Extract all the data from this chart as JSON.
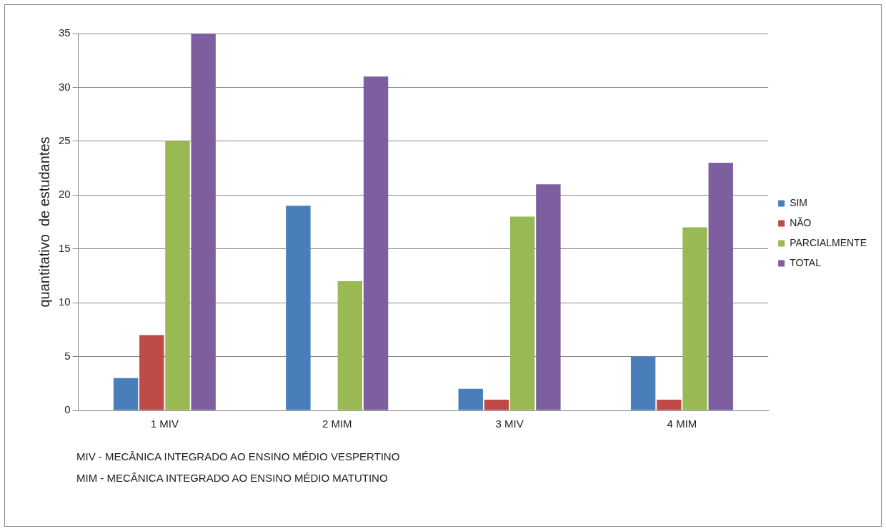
{
  "chart_data": {
    "type": "bar",
    "ylabel": "quantitativo  de estudantes",
    "categories": [
      "1 MIV",
      "2 MIM",
      "3 MIV",
      "4 MIM"
    ],
    "series": [
      {
        "name": "SIM",
        "color": "#4a7ebb",
        "values": [
          3,
          19,
          2,
          5
        ]
      },
      {
        "name": "NÃO",
        "color": "#be4b48",
        "values": [
          7,
          0,
          1,
          1
        ]
      },
      {
        "name": "PARCIALMENTE",
        "color": "#98b954",
        "values": [
          25,
          12,
          18,
          17
        ]
      },
      {
        "name": "TOTAL",
        "color": "#7d5fa0",
        "values": [
          35,
          31,
          21,
          23
        ]
      }
    ],
    "ylim": [
      0,
      35
    ],
    "yticks": [
      0,
      5,
      10,
      15,
      20,
      25,
      30,
      35
    ],
    "grid": "y",
    "legend": "right",
    "annotations": [
      "MIV - MECÂNICA INTEGRADO AO ENSINO MÉDIO VESPERTINO",
      "MIM  - MECÂNICA INTEGRADO AO ENSINO MÉDIO MATUTINO"
    ]
  }
}
